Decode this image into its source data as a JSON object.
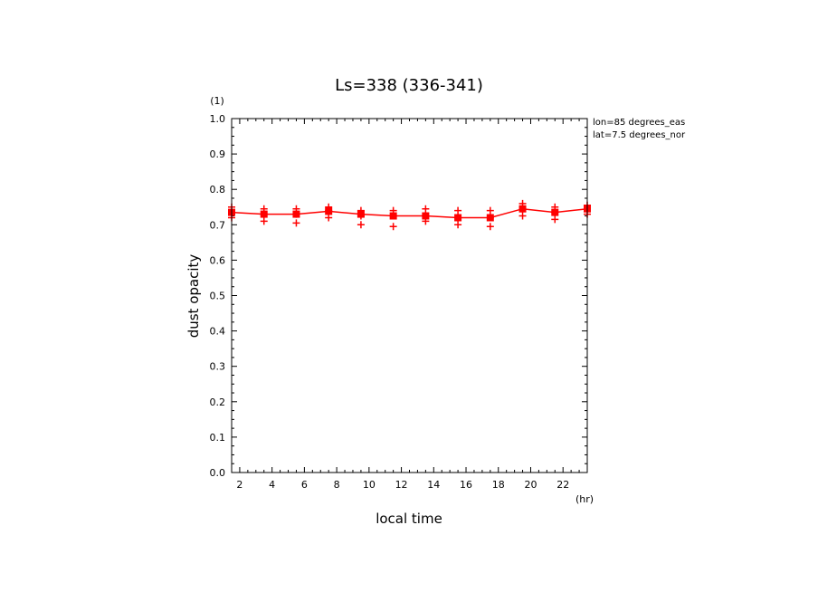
{
  "chart_data": {
    "type": "line",
    "title": "Ls=338 (336-341)",
    "xlabel": "local time",
    "ylabel": "dust opacity",
    "x_unit": "(hr)",
    "y_unit": "(1)",
    "annotations": [
      "lon=85 degrees_eas",
      "lat=7.5 degrees_nor"
    ],
    "xlim": [
      1.5,
      23.5
    ],
    "ylim": [
      0,
      1
    ],
    "xticks": [
      2,
      4,
      6,
      8,
      10,
      12,
      14,
      16,
      18,
      20,
      22
    ],
    "yticks": [
      0.0,
      0.1,
      0.2,
      0.3,
      0.4,
      0.5,
      0.6,
      0.7,
      0.8,
      0.9,
      1.0
    ],
    "ytick_labels": [
      "0.0",
      "0.1",
      "0.2",
      "0.3",
      "0.4",
      "0.5",
      "0.6",
      "0.7",
      "0.8",
      "0.9",
      "1.0"
    ],
    "color": "#ff0000",
    "series": [
      {
        "x": [
          1.5,
          3.5,
          5.5,
          7.5,
          9.5,
          11.5,
          13.5,
          15.5,
          17.5,
          19.5,
          21.5,
          23.5
        ],
        "values": [
          0.735,
          0.73,
          0.73,
          0.738,
          0.73,
          0.725,
          0.725,
          0.72,
          0.72,
          0.745,
          0.735,
          0.745
        ],
        "samples": [
          [
            0.75,
            0.735,
            0.72
          ],
          [
            0.745,
            0.73,
            0.71
          ],
          [
            0.745,
            0.73,
            0.705
          ],
          [
            0.75,
            0.74,
            0.72
          ],
          [
            0.74,
            0.725,
            0.7
          ],
          [
            0.74,
            0.725,
            0.695
          ],
          [
            0.745,
            0.725,
            0.71
          ],
          [
            0.74,
            0.72,
            0.7
          ],
          [
            0.74,
            0.72,
            0.695
          ],
          [
            0.76,
            0.745,
            0.725
          ],
          [
            0.75,
            0.735,
            0.715
          ],
          [
            0.755,
            0.745,
            0.73
          ]
        ]
      }
    ]
  }
}
